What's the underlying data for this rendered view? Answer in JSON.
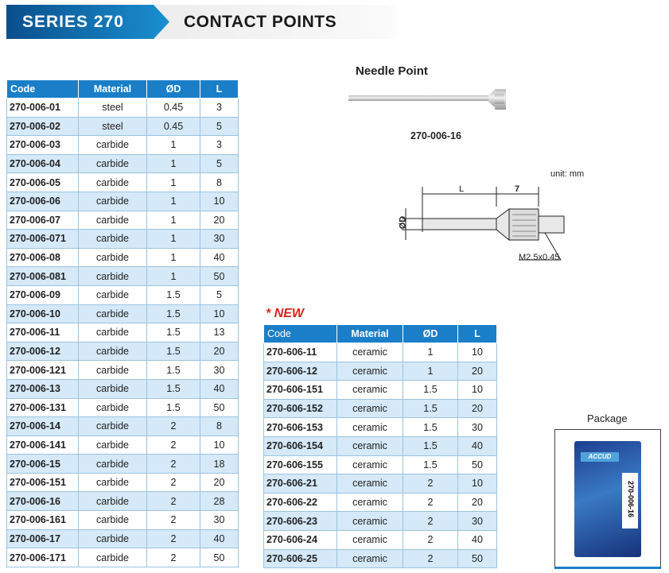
{
  "header": {
    "series": "SERIES 270",
    "title": "CONTACT POINTS"
  },
  "needle": {
    "title": "Needle Point",
    "code": "270-006-16",
    "unit": "unit: mm",
    "dim_L": "L",
    "dim_7": "7",
    "dim_D": "ØD",
    "thread": "M2.5x0.45"
  },
  "new_label": "NEW",
  "new_star": "*",
  "package": {
    "title": "Package",
    "brand": "ACCUD",
    "code": "270-006-16"
  },
  "columns": [
    "Code",
    "Material",
    "ØD",
    "L"
  ],
  "table1": [
    [
      "270-006-01",
      "steel",
      "0.45",
      "3"
    ],
    [
      "270-006-02",
      "steel",
      "0.45",
      "5"
    ],
    [
      "270-006-03",
      "carbide",
      "1",
      "3"
    ],
    [
      "270-006-04",
      "carbide",
      "1",
      "5"
    ],
    [
      "270-006-05",
      "carbide",
      "1",
      "8"
    ],
    [
      "270-006-06",
      "carbide",
      "1",
      "10"
    ],
    [
      "270-006-07",
      "carbide",
      "1",
      "20"
    ],
    [
      "270-006-071",
      "carbide",
      "1",
      "30"
    ],
    [
      "270-006-08",
      "carbide",
      "1",
      "40"
    ],
    [
      "270-006-081",
      "carbide",
      "1",
      "50"
    ],
    [
      "270-006-09",
      "carbide",
      "1.5",
      "5"
    ],
    [
      "270-006-10",
      "carbide",
      "1.5",
      "10"
    ],
    [
      "270-006-11",
      "carbide",
      "1.5",
      "13"
    ],
    [
      "270-006-12",
      "carbide",
      "1.5",
      "20"
    ],
    [
      "270-006-121",
      "carbide",
      "1.5",
      "30"
    ],
    [
      "270-006-13",
      "carbide",
      "1.5",
      "40"
    ],
    [
      "270-006-131",
      "carbide",
      "1.5",
      "50"
    ],
    [
      "270-006-14",
      "carbide",
      "2",
      "8"
    ],
    [
      "270-006-141",
      "carbide",
      "2",
      "10"
    ],
    [
      "270-006-15",
      "carbide",
      "2",
      "18"
    ],
    [
      "270-006-151",
      "carbide",
      "2",
      "20"
    ],
    [
      "270-006-16",
      "carbide",
      "2",
      "28"
    ],
    [
      "270-006-161",
      "carbide",
      "2",
      "30"
    ],
    [
      "270-006-17",
      "carbide",
      "2",
      "40"
    ],
    [
      "270-006-171",
      "carbide",
      "2",
      "50"
    ]
  ],
  "table2": [
    [
      "270-606-11",
      "ceramic",
      "1",
      "10"
    ],
    [
      "270-606-12",
      "ceramic",
      "1",
      "20"
    ],
    [
      "270-606-151",
      "ceramic",
      "1.5",
      "10"
    ],
    [
      "270-606-152",
      "ceramic",
      "1.5",
      "20"
    ],
    [
      "270-606-153",
      "ceramic",
      "1.5",
      "30"
    ],
    [
      "270-606-154",
      "ceramic",
      "1.5",
      "40"
    ],
    [
      "270-606-155",
      "ceramic",
      "1.5",
      "50"
    ],
    [
      "270-606-21",
      "ceramic",
      "2",
      "10"
    ],
    [
      "270-606-22",
      "ceramic",
      "2",
      "20"
    ],
    [
      "270-606-23",
      "ceramic",
      "2",
      "30"
    ],
    [
      "270-606-24",
      "ceramic",
      "2",
      "40"
    ],
    [
      "270-606-25",
      "ceramic",
      "2",
      "50"
    ]
  ]
}
